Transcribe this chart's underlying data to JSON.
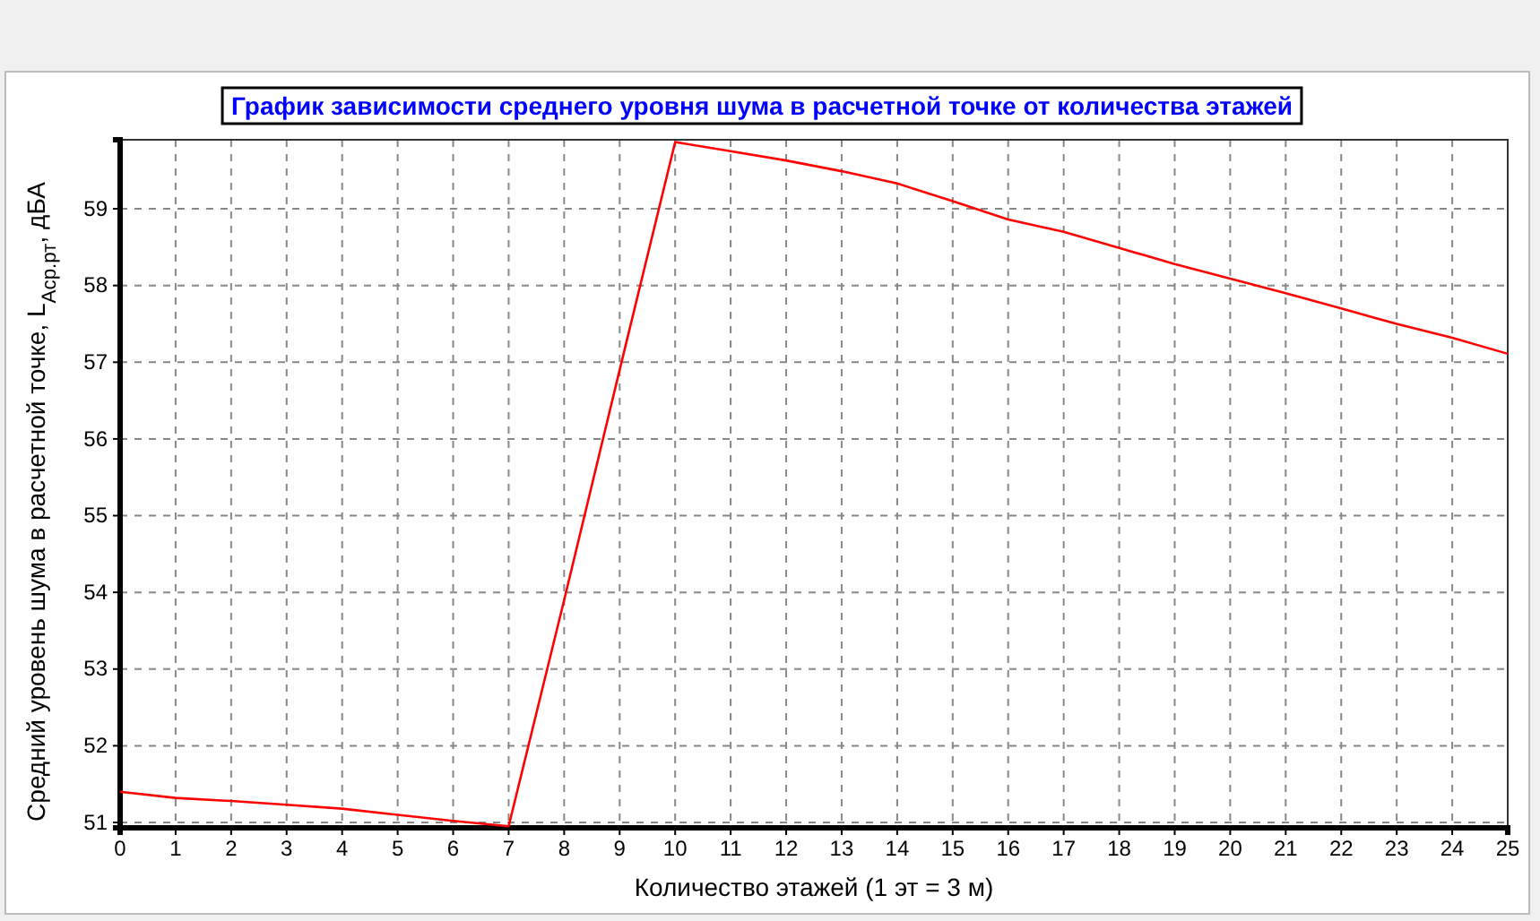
{
  "chart_data": {
    "type": "line",
    "title": "График зависимости среднего уровня шума в расчетной точке от количества этажей",
    "xlabel": "Количество этажей (1 эт = 3 м)",
    "ylabel": "Средний уровень шума в расчетной точке, L$_{Аср.рт}$, дБА",
    "x": [
      0,
      1,
      2,
      3,
      4,
      5,
      6,
      7,
      8,
      9,
      10,
      11,
      12,
      13,
      14,
      15,
      16,
      17,
      18,
      19,
      20,
      21,
      22,
      23,
      24,
      25
    ],
    "series": [
      {
        "color": "#ff0000",
        "values": [
          51.4,
          51.32,
          51.28,
          51.23,
          51.18,
          51.1,
          51.02,
          50.95,
          53.9,
          56.9,
          59.87,
          59.75,
          59.63,
          59.49,
          59.33,
          59.1,
          58.86,
          58.7,
          58.49,
          58.28,
          58.09,
          57.9,
          57.7,
          57.5,
          57.32,
          57.11
        ]
      }
    ],
    "xlim": [
      0,
      25
    ],
    "xticks": [
      0,
      1,
      2,
      3,
      4,
      5,
      6,
      7,
      8,
      9,
      10,
      11,
      12,
      13,
      14,
      15,
      16,
      17,
      18,
      19,
      20,
      21,
      22,
      23,
      24,
      25
    ],
    "ylim": [
      50.93,
      59.9
    ],
    "yticks": [
      51,
      52,
      53,
      54,
      55,
      56,
      57,
      58,
      59
    ],
    "grid": true,
    "marker": "none",
    "line_style": "solid"
  }
}
